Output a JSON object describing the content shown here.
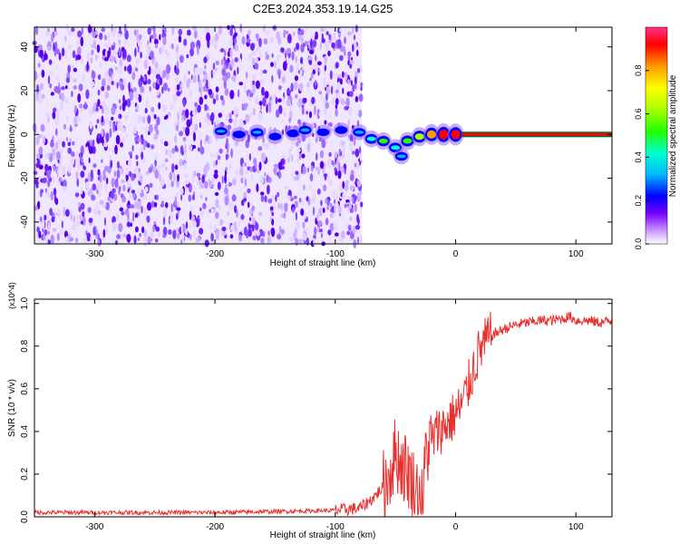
{
  "title": "C2E3.2024.353.19.14.G25",
  "chart_data": [
    {
      "type": "heatmap",
      "xlabel": "Height of straight line (km)",
      "ylabel": "Frequency (Hz)",
      "xlim": [
        -350,
        130
      ],
      "ylim": [
        -50,
        49
      ],
      "xticks": [
        -300,
        -200,
        -100,
        0,
        100
      ],
      "yticks": [
        -40,
        -20,
        0,
        20,
        40
      ],
      "noise_region_x": [
        -350,
        -78
      ],
      "signal_track": [
        {
          "x": -195,
          "freq": 1.5,
          "amp": 0.25
        },
        {
          "x": -180,
          "freq": 0,
          "amp": 0.2
        },
        {
          "x": -165,
          "freq": 1,
          "amp": 0.28
        },
        {
          "x": -150,
          "freq": -1,
          "amp": 0.2
        },
        {
          "x": -135,
          "freq": 0.5,
          "amp": 0.22
        },
        {
          "x": -125,
          "freq": 2,
          "amp": 0.3
        },
        {
          "x": -110,
          "freq": 1,
          "amp": 0.2
        },
        {
          "x": -95,
          "freq": 2,
          "amp": 0.22
        },
        {
          "x": -80,
          "freq": 1,
          "amp": 0.3
        },
        {
          "x": -70,
          "freq": -2,
          "amp": 0.4
        },
        {
          "x": -60,
          "freq": -3,
          "amp": 0.45
        },
        {
          "x": -50,
          "freq": -6,
          "amp": 0.4
        },
        {
          "x": -45,
          "freq": -10,
          "amp": 0.3
        },
        {
          "x": -40,
          "freq": -3,
          "amp": 0.5
        },
        {
          "x": -30,
          "freq": -1,
          "amp": 0.6
        },
        {
          "x": -20,
          "freq": 0,
          "amp": 0.75
        },
        {
          "x": -10,
          "freq": 0,
          "amp": 0.9
        },
        {
          "x": 0,
          "freq": 0,
          "amp": 0.85
        }
      ],
      "tone_line": {
        "freq": 0,
        "x_start": 5,
        "x_end": 130,
        "amp": 0.95
      }
    },
    {
      "type": "line",
      "xlabel": "Height of straight line (km)",
      "ylabel": "SNR (10 * v/v)",
      "y_multiplier": "(x10^4)",
      "xlim": [
        -350,
        130
      ],
      "ylim": [
        0,
        1.02
      ],
      "xticks": [
        -300,
        -200,
        -100,
        0,
        100
      ],
      "yticks": [
        0.0,
        0.2,
        0.4,
        0.6,
        0.8,
        1.0
      ],
      "series": [
        {
          "color": "#e8302e",
          "x": [
            -350,
            -200,
            -100,
            -80,
            -70,
            -60,
            -55,
            -50,
            -45,
            -40,
            -35,
            -30,
            -27,
            -25,
            -20,
            -15,
            -10,
            -5,
            0,
            5,
            10,
            15,
            20,
            25,
            30,
            40,
            50,
            60,
            70,
            80,
            90,
            95,
            100,
            110,
            120,
            130
          ],
          "y": [
            0.02,
            0.02,
            0.03,
            0.04,
            0.08,
            0.14,
            0.2,
            0.3,
            0.25,
            0.22,
            0.15,
            0.1,
            0.05,
            0.3,
            0.35,
            0.4,
            0.42,
            0.45,
            0.48,
            0.52,
            0.6,
            0.7,
            0.78,
            0.82,
            0.85,
            0.88,
            0.9,
            0.91,
            0.92,
            0.92,
            0.93,
            0.94,
            0.92,
            0.92,
            0.91,
            0.92
          ]
        }
      ]
    }
  ],
  "colorbar": {
    "label": "Normalized spectral amplitude",
    "ticks": [
      0.0,
      0.2,
      0.4,
      0.6,
      0.8
    ],
    "range": [
      0,
      1
    ]
  }
}
